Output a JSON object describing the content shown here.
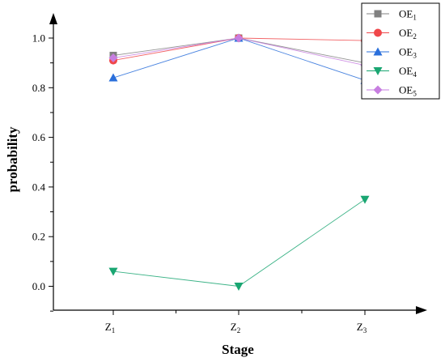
{
  "chart_data": {
    "type": "line",
    "xlabel": "Stage",
    "ylabel": "probability",
    "categories": [
      {
        "base": "Z",
        "sub": "1"
      },
      {
        "base": "Z",
        "sub": "2"
      },
      {
        "base": "Z",
        "sub": "3"
      }
    ],
    "y_ticks": [
      "0.0",
      "0.2",
      "0.4",
      "0.6",
      "0.8",
      "1.0"
    ],
    "ylim": [
      -0.1,
      1.1
    ],
    "grid": false,
    "legend_position": "top-right",
    "series": [
      {
        "base": "OE",
        "sub": "1",
        "marker": "square",
        "color": "#808080",
        "values": [
          0.93,
          1.0,
          0.9
        ]
      },
      {
        "base": "OE",
        "sub": "2",
        "marker": "circle",
        "color": "#f0474a",
        "values": [
          0.91,
          1.0,
          0.99
        ]
      },
      {
        "base": "OE",
        "sub": "3",
        "marker": "triangle-up",
        "color": "#2a6fdb",
        "values": [
          0.84,
          1.0,
          0.83
        ]
      },
      {
        "base": "OE",
        "sub": "4",
        "marker": "triangle-down",
        "color": "#1aa672",
        "values": [
          0.06,
          0.0,
          0.35
        ]
      },
      {
        "base": "OE",
        "sub": "5",
        "marker": "diamond",
        "color": "#c77ee0",
        "values": [
          0.92,
          1.0,
          0.89
        ]
      }
    ]
  }
}
